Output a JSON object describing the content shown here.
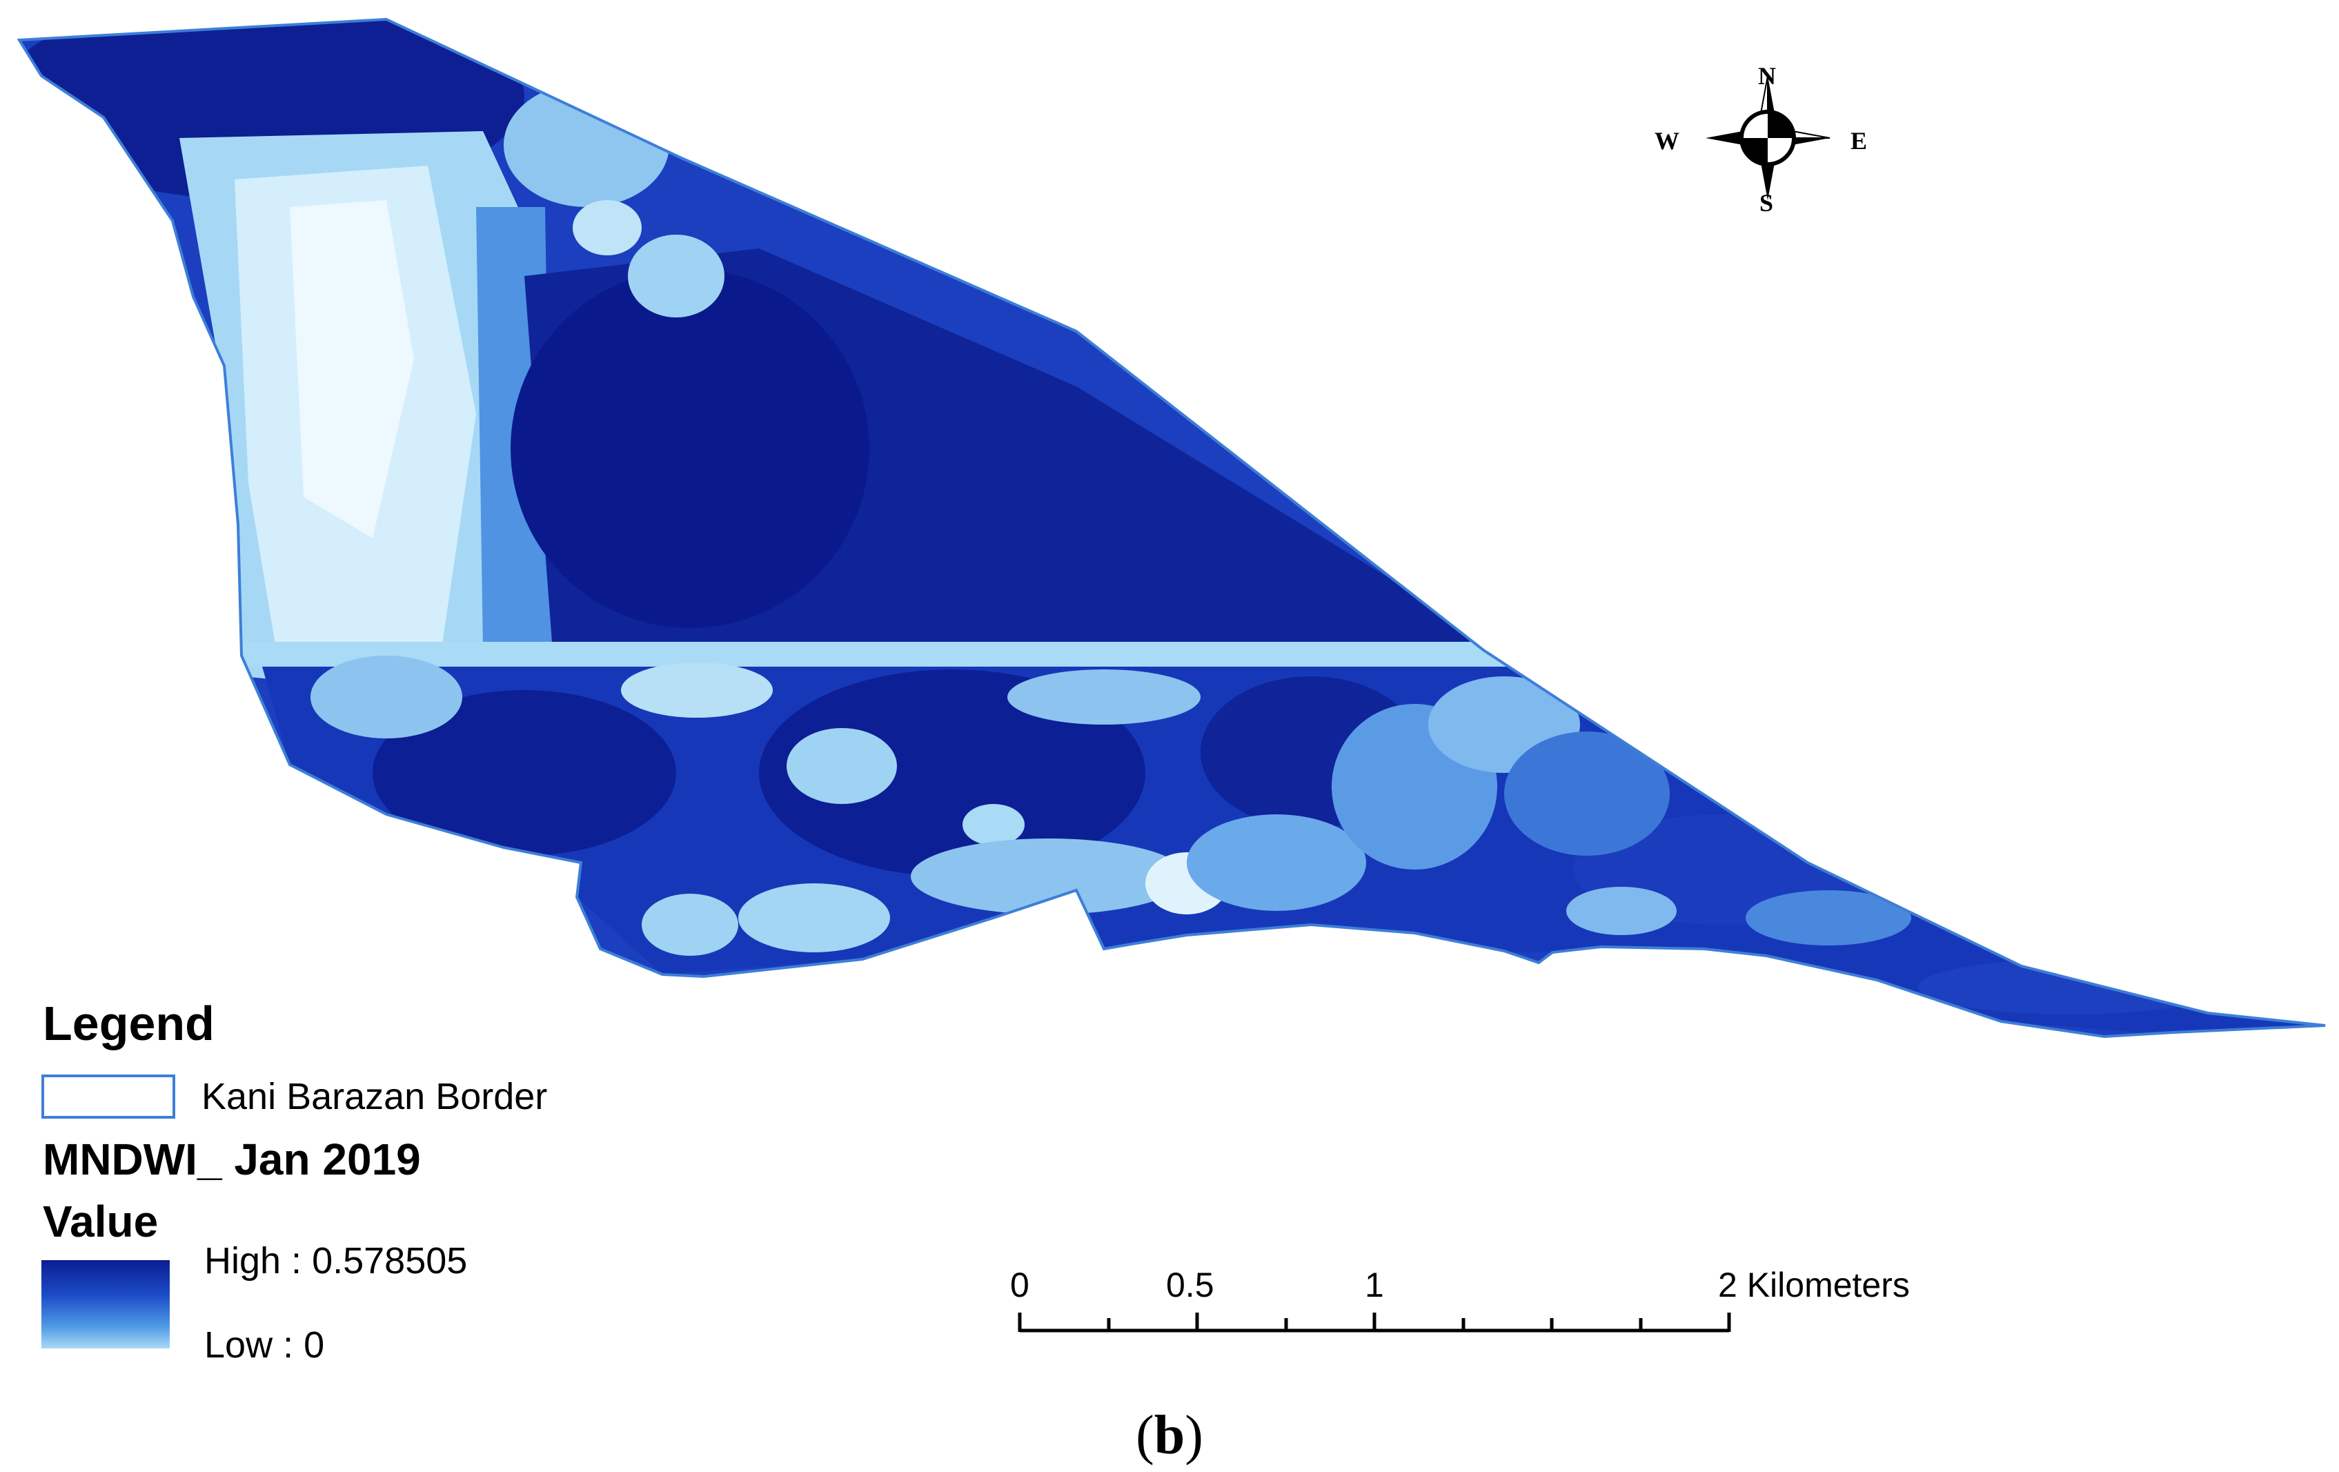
{
  "legend": {
    "title": "Legend",
    "border_label": "Kani Barazan Border",
    "layer_title": "MNDWI_ Jan 2019",
    "value_title": "Value",
    "high_label": "High : 0.578505",
    "low_label": "Low : 0",
    "ramp_colors": [
      "#0c1d92",
      "#1c4cc8",
      "#4f9ae6",
      "#a9daf6"
    ],
    "border_color": "#3d7fd8"
  },
  "scale_bar": {
    "ticks": [
      "0",
      "0.5",
      "1",
      "2 Kilometers"
    ]
  },
  "north_arrow": {
    "north": "N",
    "south": "S",
    "east": "E",
    "west": "W"
  },
  "panel": {
    "open": "(",
    "letter": "b",
    "close": ")"
  },
  "colors": {
    "deep_water": "#0f2499",
    "water": "#1a3fc0",
    "medium": "#3f7fe0",
    "light": "#9fd3f3",
    "very_light": "#e6f5ff"
  }
}
